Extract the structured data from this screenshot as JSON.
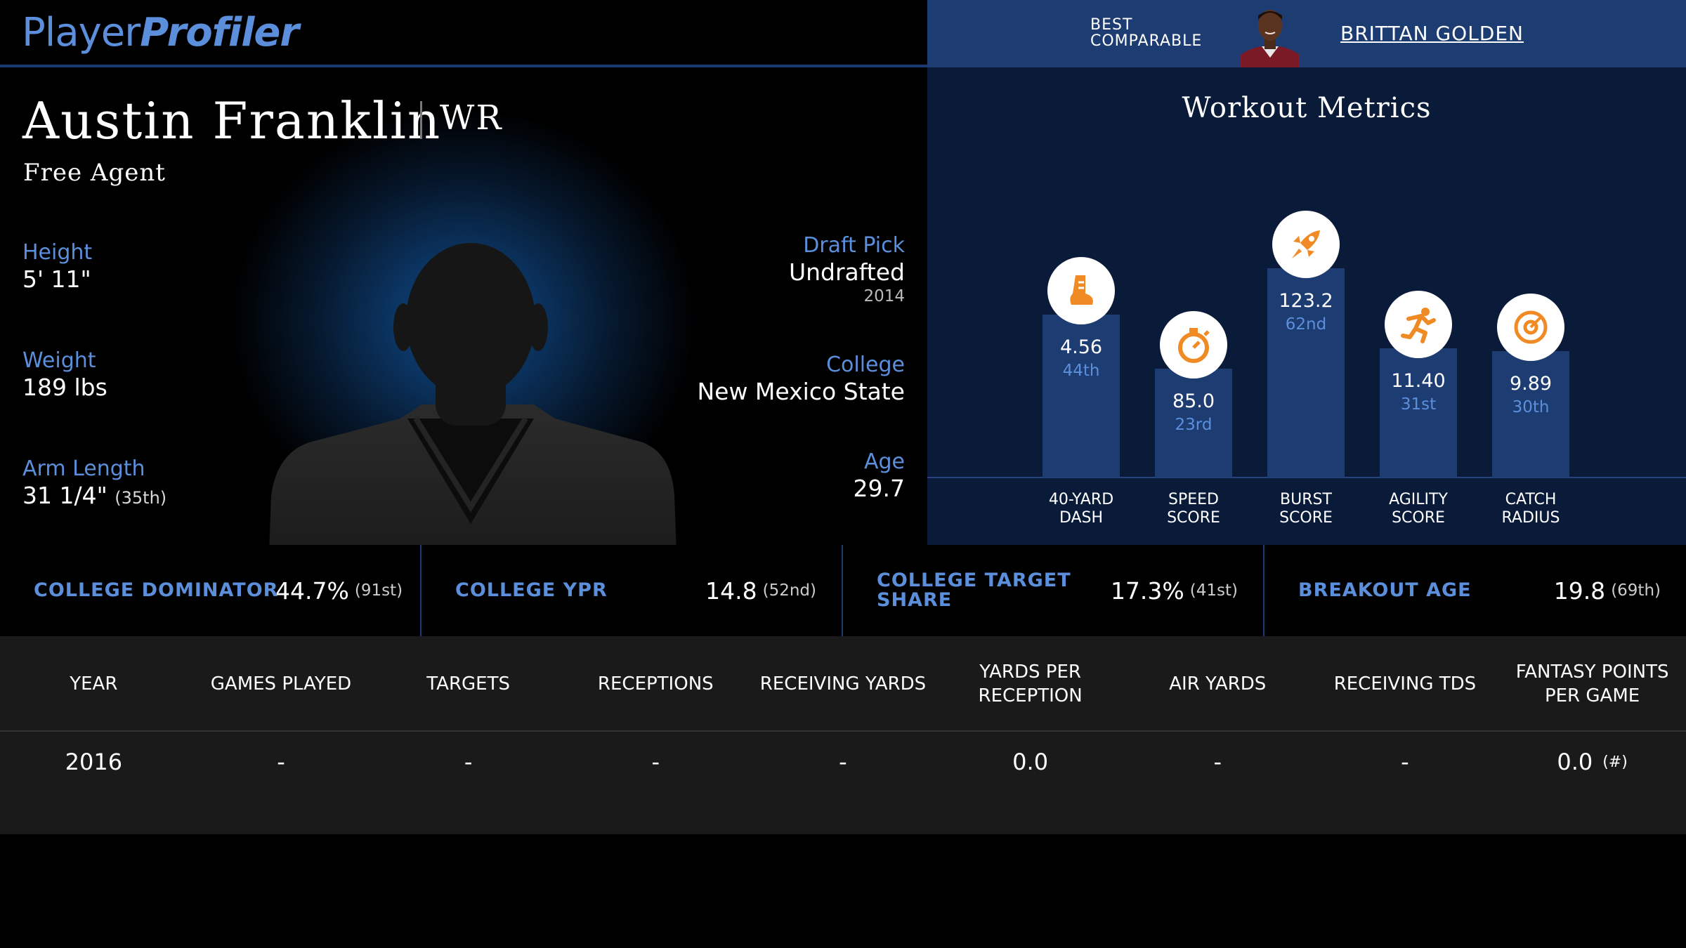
{
  "header": {
    "logo_part1": "Player",
    "logo_part2": "Profiler",
    "best_comparable_label_line1": "BEST",
    "best_comparable_label_line2": "COMPARABLE",
    "best_comparable_name": "BRITTAN GOLDEN"
  },
  "player": {
    "name": "Austin Franklin",
    "position": "WR",
    "team_status": "Free Agent",
    "height_label": "Height",
    "height": "5' 11\"",
    "weight_label": "Weight",
    "weight": "189 lbs",
    "arm_length_label": "Arm Length",
    "arm_length": "31 1/4\"",
    "arm_length_pct": "(35th)",
    "draft_pick_label": "Draft Pick",
    "draft_pick": "Undrafted",
    "draft_year": "2014",
    "college_label": "College",
    "college": "New Mexico State",
    "age_label": "Age",
    "age": "29.7"
  },
  "workout": {
    "title": "Workout Metrics",
    "metrics": [
      {
        "label_line1": "40-YARD",
        "label_line2": "DASH",
        "value": "4.56",
        "rank": "44th",
        "percentile": 44,
        "icon": "shoe-icon"
      },
      {
        "label_line1": "SPEED",
        "label_line2": "SCORE",
        "value": "85.0",
        "rank": "23rd",
        "percentile": 23,
        "icon": "stopwatch-icon"
      },
      {
        "label_line1": "BURST",
        "label_line2": "SCORE",
        "value": "123.2",
        "rank": "62nd",
        "percentile": 62,
        "icon": "rocket-icon"
      },
      {
        "label_line1": "AGILITY",
        "label_line2": "SCORE",
        "value": "11.40",
        "rank": "31st",
        "percentile": 31,
        "icon": "runner-icon"
      },
      {
        "label_line1": "CATCH",
        "label_line2": "RADIUS",
        "value": "9.89",
        "rank": "30th",
        "percentile": 30,
        "icon": "target-icon"
      }
    ]
  },
  "college_metrics": [
    {
      "label": "COLLEGE DOMINATOR",
      "value": "44.7%",
      "pct": "(91st)"
    },
    {
      "label": "COLLEGE YPR",
      "value": "14.8",
      "pct": "(52nd)"
    },
    {
      "label": "COLLEGE TARGET SHARE",
      "value": "17.3%",
      "pct": "(41st)"
    },
    {
      "label": "BREAKOUT AGE",
      "value": "19.8",
      "pct": "(69th)"
    }
  ],
  "stats_table": {
    "headers": [
      "YEAR",
      "GAMES PLAYED",
      "TARGETS",
      "RECEPTIONS",
      "RECEIVING YARDS",
      "YARDS PER RECEPTION",
      "AIR YARDS",
      "RECEIVING TDS",
      "FANTASY POINTS PER GAME"
    ],
    "rows": [
      [
        "2016",
        "-",
        "-",
        "-",
        "-",
        "0.0",
        "-",
        "-",
        "0.0"
      ]
    ],
    "fantasy_rank": "(#)"
  },
  "colors": {
    "accent_blue": "#5c8fdb",
    "panel_navy": "#0a1b3a",
    "bar_blue": "#1d3c72",
    "icon_orange": "#f08a24"
  }
}
